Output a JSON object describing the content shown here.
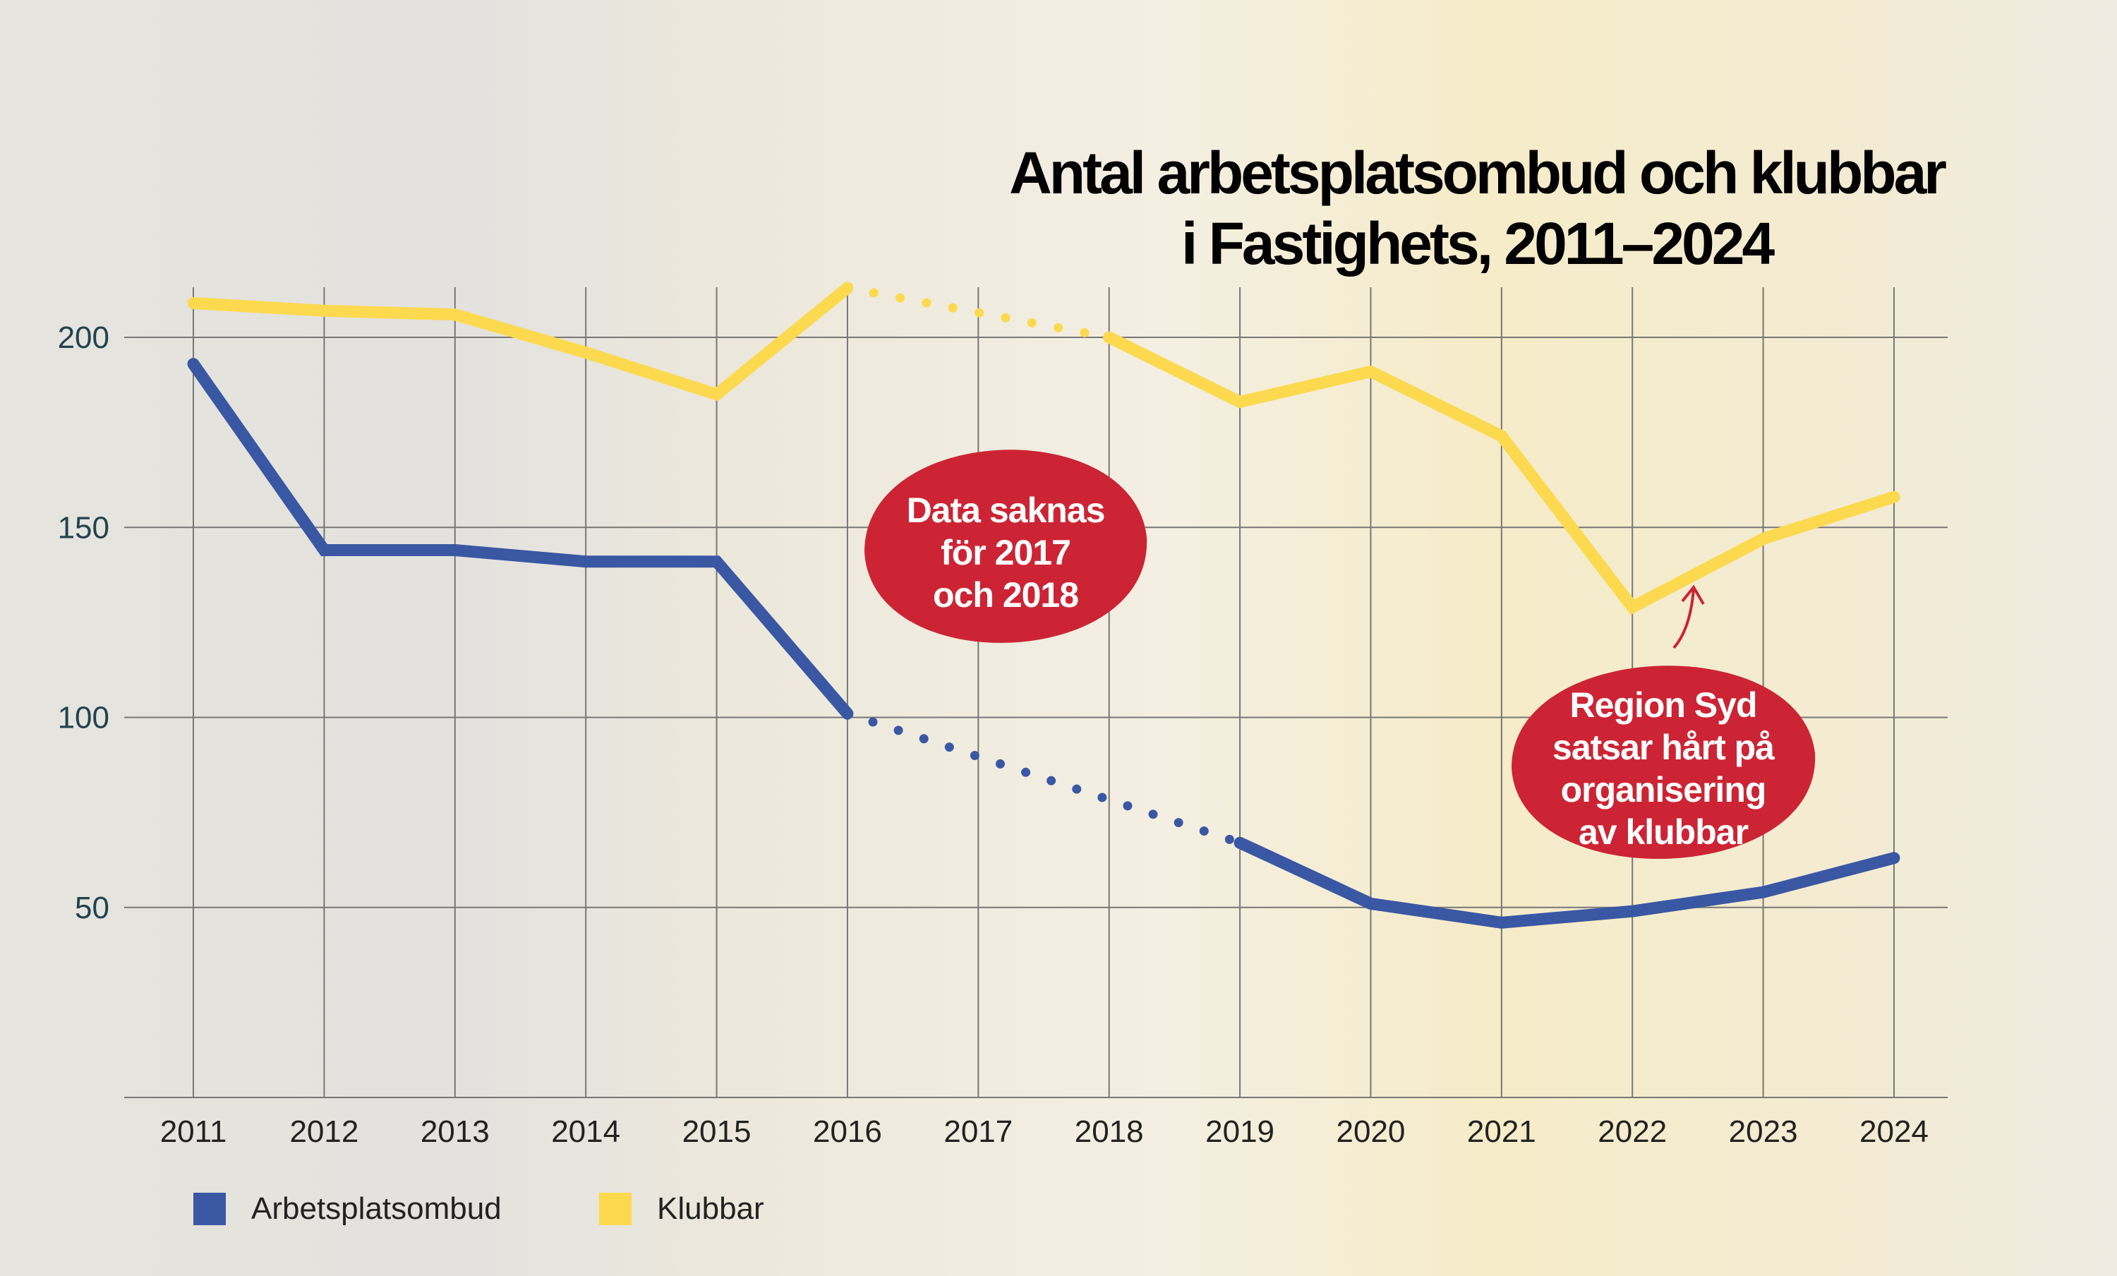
{
  "title_lines": [
    "Antal arbetsplatsombud och klubbar",
    "i Fastighets, 2011–2024"
  ],
  "chart_data": {
    "type": "line",
    "title": "Antal arbetsplatsombud och klubbar i Fastighets, 2011–2024",
    "x": [
      2011,
      2012,
      2013,
      2014,
      2015,
      2016,
      2017,
      2018,
      2019,
      2020,
      2021,
      2022,
      2023,
      2024
    ],
    "yticks": [
      50,
      100,
      150,
      200
    ],
    "ylim": [
      0,
      215
    ],
    "grid": true,
    "legend_placement": "bottom-left",
    "series": [
      {
        "name": "Arbetsplatsombud",
        "color": "#3a57a3",
        "values": [
          193,
          144,
          144,
          141,
          141,
          101,
          null,
          null,
          67,
          51,
          46,
          49,
          54,
          63
        ]
      },
      {
        "name": "Klubbar",
        "color": "#fcd94f",
        "values": [
          209,
          207,
          206,
          196,
          185,
          213,
          null,
          200,
          183,
          191,
          174,
          129,
          147,
          158
        ]
      }
    ],
    "annotations": [
      {
        "text_lines": [
          "Data saknas",
          "för 2017",
          "och 2018"
        ],
        "color": "#cc2434"
      },
      {
        "text_lines": [
          "Region Syd",
          "satsar hårt på",
          "organisering",
          "av klubbar"
        ],
        "color": "#cc2434"
      }
    ]
  }
}
